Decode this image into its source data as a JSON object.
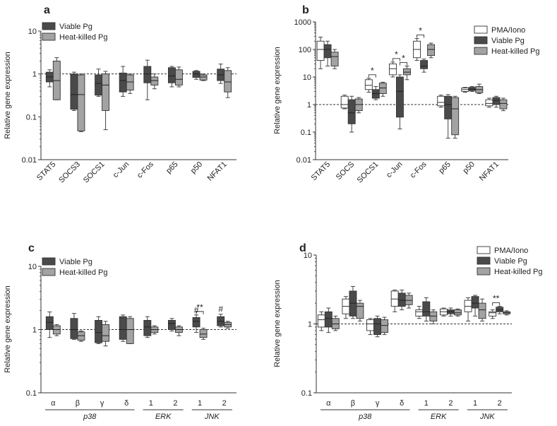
{
  "figure": {
    "y_axis_label": "Relative gene expression"
  },
  "chart_data": [
    {
      "panel_letter": "a",
      "type": "boxplot",
      "scale": "log",
      "ylim": [
        0.01,
        10
      ],
      "yticks": [
        "10",
        "1",
        "0.1",
        "0.01"
      ],
      "reference_line": 1,
      "ylabel": "Relative gene expression",
      "categories": [
        "STAT5",
        "SOCS3",
        "SOCS1",
        "c-Jun",
        "c-Fos",
        "p65",
        "p50",
        "NFAT1"
      ],
      "legend": [
        {
          "name": "Viable Pg",
          "color": "#4a4a4a"
        },
        {
          "name": "Heat-killed Pg",
          "color": "#a3a3a3"
        }
      ],
      "series": [
        {
          "name": "Viable Pg",
          "boxes": [
            {
              "min": 0.5,
              "q1": 0.65,
              "med": 0.85,
              "q3": 1.1,
              "max": 1.25
            },
            {
              "min": 0.14,
              "q1": 0.15,
              "med": 0.33,
              "q3": 1.0,
              "max": 1.1
            },
            {
              "min": 0.3,
              "q1": 0.32,
              "med": 0.6,
              "q3": 0.95,
              "max": 1.3
            },
            {
              "min": 0.3,
              "q1": 0.38,
              "med": 0.7,
              "q3": 1.05,
              "max": 1.5
            },
            {
              "min": 0.25,
              "q1": 0.62,
              "med": 1.0,
              "q3": 1.5,
              "max": 2.1
            },
            {
              "min": 0.5,
              "q1": 0.62,
              "med": 0.9,
              "q3": 1.4,
              "max": 1.5
            },
            {
              "min": 0.75,
              "q1": 0.83,
              "med": 1.0,
              "q3": 1.15,
              "max": 1.2
            },
            {
              "min": 0.6,
              "q1": 0.7,
              "med": 0.95,
              "q3": 1.3,
              "max": 1.7
            }
          ]
        },
        {
          "name": "Heat-killed Pg",
          "boxes": [
            {
              "min": 0.25,
              "q1": 0.25,
              "med": 0.7,
              "q3": 2.0,
              "max": 2.4
            },
            {
              "min": 0.045,
              "q1": 0.047,
              "med": 0.33,
              "q3": 0.95,
              "max": 1.0
            },
            {
              "min": 0.05,
              "q1": 0.14,
              "med": 0.55,
              "q3": 1.0,
              "max": 1.15
            },
            {
              "min": 0.35,
              "q1": 0.42,
              "med": 0.65,
              "q3": 0.95,
              "max": 1.0
            },
            {
              "min": 0.45,
              "q1": 0.55,
              "med": 0.7,
              "q3": 0.85,
              "max": 1.0
            },
            {
              "min": 0.5,
              "q1": 0.55,
              "med": 0.75,
              "q3": 1.25,
              "max": 1.45
            },
            {
              "min": 0.7,
              "q1": 0.72,
              "med": 0.85,
              "q3": 0.95,
              "max": 1.0
            },
            {
              "min": 0.28,
              "q1": 0.38,
              "med": 0.65,
              "q3": 1.2,
              "max": 1.4
            }
          ]
        }
      ],
      "annotations": []
    },
    {
      "panel_letter": "b",
      "type": "boxplot",
      "scale": "log",
      "ylim": [
        0.01,
        1000
      ],
      "yticks": [
        "1000",
        "100",
        "10",
        "1",
        "0.1",
        "0.01"
      ],
      "reference_line": 1,
      "ylabel": "Relative gene expression",
      "categories": [
        "STAT5",
        "SOCS",
        "SOCS1",
        "c-Jun",
        "c-Fos",
        "p65",
        "p50",
        "NFAT1"
      ],
      "legend": [
        {
          "name": "PMA/Iono",
          "color": "#ffffff"
        },
        {
          "name": "Viable Pg",
          "color": "#4a4a4a"
        },
        {
          "name": "Heat-killed Pg",
          "color": "#a3a3a3"
        }
      ],
      "series": [
        {
          "name": "PMA/Iono",
          "boxes": [
            {
              "min": 20,
              "q1": 40,
              "med": 100,
              "q3": 200,
              "max": 280
            },
            {
              "min": 0.7,
              "q1": 0.75,
              "med": 1.0,
              "q3": 2.0,
              "max": 2.2
            },
            {
              "min": 2.8,
              "q1": 3.5,
              "med": 5.0,
              "q3": 8.0,
              "max": 9.0
            },
            {
              "min": 10,
              "q1": 12,
              "med": 20,
              "q3": 30,
              "max": 35
            },
            {
              "min": 40,
              "q1": 50,
              "med": 100,
              "q3": 200,
              "max": 250
            },
            {
              "min": 0.8,
              "q1": 0.9,
              "med": 1.2,
              "q3": 2.0,
              "max": 2.2
            },
            {
              "min": 2.8,
              "q1": 3.0,
              "med": 3.5,
              "q3": 4.0,
              "max": 4.2
            },
            {
              "min": 0.8,
              "q1": 0.9,
              "med": 1.1,
              "q3": 1.5,
              "max": 1.7
            }
          ]
        },
        {
          "name": "Viable Pg",
          "boxes": [
            {
              "min": 25,
              "q1": 50,
              "med": 100,
              "q3": 150,
              "max": 200
            },
            {
              "min": 0.1,
              "q1": 0.2,
              "med": 0.5,
              "q3": 1.5,
              "max": 2.0
            },
            {
              "min": 1.5,
              "q1": 1.7,
              "med": 2.5,
              "q3": 3.5,
              "max": 4.5
            },
            {
              "min": 0.13,
              "q1": 0.35,
              "med": 3.0,
              "q3": 10,
              "max": 12
            },
            {
              "min": 15,
              "q1": 20,
              "med": 25,
              "q3": 40,
              "max": 45
            },
            {
              "min": 0.06,
              "q1": 0.3,
              "med": 1.0,
              "q3": 2.0,
              "max": 2.3
            },
            {
              "min": 3.0,
              "q1": 3.2,
              "med": 3.6,
              "q3": 4.2,
              "max": 4.5
            },
            {
              "min": 0.8,
              "q1": 1.0,
              "med": 1.4,
              "q3": 1.8,
              "max": 2.0
            }
          ]
        },
        {
          "name": "Heat-killed Pg",
          "boxes": [
            {
              "min": 20,
              "q1": 25,
              "med": 55,
              "q3": 80,
              "max": 100
            },
            {
              "min": 0.5,
              "q1": 0.6,
              "med": 1.0,
              "q3": 1.6,
              "max": 1.8
            },
            {
              "min": 2.0,
              "q1": 2.5,
              "med": 4.0,
              "q3": 6.0,
              "max": 6.5
            },
            {
              "min": 8,
              "q1": 12,
              "med": 15,
              "q3": 20,
              "max": 25
            },
            {
              "min": 50,
              "q1": 60,
              "med": 100,
              "q3": 150,
              "max": 170
            },
            {
              "min": 0.06,
              "q1": 0.08,
              "med": 0.7,
              "q3": 1.8,
              "max": 2.0
            },
            {
              "min": 2.5,
              "q1": 2.7,
              "med": 3.5,
              "q3": 4.5,
              "max": 5.5
            },
            {
              "min": 0.6,
              "q1": 0.7,
              "med": 1.1,
              "q3": 1.5,
              "max": 1.7
            }
          ]
        }
      ],
      "annotations": [
        {
          "text": "*",
          "category": 2,
          "from_series": 0,
          "to_series": 1
        },
        {
          "text": "*",
          "category": 3,
          "from_series": 0,
          "to_series": 1
        },
        {
          "text": "*",
          "category": 3,
          "from_series": 1,
          "to_series": 2
        },
        {
          "text": "*",
          "category": 4,
          "from_series": 0,
          "to_series": 1
        }
      ]
    },
    {
      "panel_letter": "c",
      "type": "boxplot",
      "scale": "log",
      "ylim": [
        0.1,
        10
      ],
      "yticks": [
        "10",
        "1",
        "0.1"
      ],
      "reference_line": 1,
      "ylabel": "Relative gene expression",
      "categories": [
        "α",
        "β",
        "γ",
        "δ",
        "1",
        "2",
        "1",
        "2"
      ],
      "groups": [
        {
          "label": "p38",
          "from": 0,
          "to": 3
        },
        {
          "label": "ERK",
          "from": 4,
          "to": 5
        },
        {
          "label": "JNK",
          "from": 6,
          "to": 7
        }
      ],
      "legend": [
        {
          "name": "Viable Pg",
          "color": "#4a4a4a"
        },
        {
          "name": "Heat-killed Pg",
          "color": "#a3a3a3"
        }
      ],
      "series": [
        {
          "name": "Viable Pg",
          "boxes": [
            {
              "min": 0.75,
              "q1": 1.0,
              "med": 1.3,
              "q3": 1.6,
              "max": 1.9
            },
            {
              "min": 0.7,
              "q1": 0.72,
              "med": 1.0,
              "q3": 1.5,
              "max": 1.8
            },
            {
              "min": 0.6,
              "q1": 0.62,
              "med": 0.9,
              "q3": 1.4,
              "max": 1.6
            },
            {
              "min": 0.65,
              "q1": 0.7,
              "med": 1.0,
              "q3": 1.6,
              "max": 1.7
            },
            {
              "min": 0.75,
              "q1": 0.8,
              "med": 1.1,
              "q3": 1.4,
              "max": 1.6
            },
            {
              "min": 0.95,
              "q1": 1.0,
              "med": 1.25,
              "q3": 1.4,
              "max": 1.5
            },
            {
              "min": 0.9,
              "q1": 1.1,
              "med": 1.35,
              "q3": 1.55,
              "max": 1.7
            },
            {
              "min": 1.1,
              "q1": 1.15,
              "med": 1.35,
              "q3": 1.6,
              "max": 1.75
            }
          ]
        },
        {
          "name": "Heat-killed Pg",
          "boxes": [
            {
              "min": 0.8,
              "q1": 0.85,
              "med": 1.0,
              "q3": 1.15,
              "max": 1.2
            },
            {
              "min": 0.65,
              "q1": 0.68,
              "med": 0.8,
              "q3": 0.92,
              "max": 0.95
            },
            {
              "min": 0.55,
              "q1": 0.65,
              "med": 0.8,
              "q3": 1.2,
              "max": 1.35
            },
            {
              "min": 0.6,
              "q1": 0.6,
              "med": 1.0,
              "q3": 1.5,
              "max": 1.6
            },
            {
              "min": 0.85,
              "q1": 0.9,
              "med": 1.0,
              "q3": 1.1,
              "max": 1.15
            },
            {
              "min": 0.8,
              "q1": 0.9,
              "med": 1.0,
              "q3": 1.1,
              "max": 1.15
            },
            {
              "min": 0.7,
              "q1": 0.75,
              "med": 0.85,
              "q3": 1.0,
              "max": 1.05
            },
            {
              "min": 1.05,
              "q1": 1.1,
              "med": 1.2,
              "q3": 1.3,
              "max": 1.35
            }
          ]
        }
      ],
      "annotations": [
        {
          "text": "**",
          "category": 6,
          "from_series": 0,
          "to_series": 1
        },
        {
          "text": "#",
          "category": 6,
          "series": 0
        },
        {
          "text": "#",
          "category": 7,
          "series": 0
        }
      ]
    },
    {
      "panel_letter": "d",
      "type": "boxplot",
      "scale": "log",
      "ylim": [
        0.1,
        10
      ],
      "yticks": [
        "10",
        "1",
        "0.1"
      ],
      "reference_line": 1,
      "ylabel": "Relative gene expression",
      "categories": [
        "α",
        "β",
        "γ",
        "δ",
        "1",
        "2",
        "1",
        "2"
      ],
      "groups": [
        {
          "label": "p38",
          "from": 0,
          "to": 3
        },
        {
          "label": "ERK",
          "from": 4,
          "to": 5
        },
        {
          "label": "JNK",
          "from": 6,
          "to": 7
        }
      ],
      "legend": [
        {
          "name": "PMA/Iono",
          "color": "#ffffff"
        },
        {
          "name": "Viable Pg",
          "color": "#4a4a4a"
        },
        {
          "name": "Heat-killed Pg",
          "color": "#a3a3a3"
        }
      ],
      "series": [
        {
          "name": "PMA/Iono",
          "boxes": [
            {
              "min": 0.8,
              "q1": 0.9,
              "med": 1.15,
              "q3": 1.35,
              "max": 1.5
            },
            {
              "min": 1.2,
              "q1": 1.4,
              "med": 1.8,
              "q3": 2.3,
              "max": 2.5
            },
            {
              "min": 0.7,
              "q1": 0.8,
              "med": 1.0,
              "q3": 1.15,
              "max": 1.2
            },
            {
              "min": 1.5,
              "q1": 1.8,
              "med": 2.3,
              "q3": 3.0,
              "max": 3.1
            },
            {
              "min": 1.2,
              "q1": 1.3,
              "med": 1.5,
              "q3": 1.6,
              "max": 1.8
            },
            {
              "min": 1.3,
              "q1": 1.35,
              "med": 1.5,
              "q3": 1.65,
              "max": 1.7
            },
            {
              "min": 1.1,
              "q1": 1.5,
              "med": 1.8,
              "q3": 2.2,
              "max": 2.4
            },
            {
              "min": 1.2,
              "q1": 1.3,
              "med": 1.45,
              "q3": 1.5,
              "max": 1.6
            }
          ]
        },
        {
          "name": "Viable Pg",
          "boxes": [
            {
              "min": 0.75,
              "q1": 0.9,
              "med": 1.2,
              "q3": 1.5,
              "max": 1.7
            },
            {
              "min": 1.2,
              "q1": 1.3,
              "med": 2.0,
              "q3": 3.0,
              "max": 3.5
            },
            {
              "min": 0.65,
              "q1": 0.7,
              "med": 1.0,
              "q3": 1.2,
              "max": 1.3
            },
            {
              "min": 1.6,
              "q1": 1.8,
              "med": 2.2,
              "q3": 2.8,
              "max": 3.1
            },
            {
              "min": 1.1,
              "q1": 1.3,
              "med": 1.5,
              "q3": 2.1,
              "max": 2.4
            },
            {
              "min": 1.3,
              "q1": 1.4,
              "med": 1.5,
              "q3": 1.6,
              "max": 1.7
            },
            {
              "min": 1.3,
              "q1": 1.7,
              "med": 2.0,
              "q3": 2.5,
              "max": 2.6
            },
            {
              "min": 1.4,
              "q1": 1.5,
              "med": 1.6,
              "q3": 1.75,
              "max": 1.8
            }
          ]
        },
        {
          "name": "Heat-killed Pg",
          "boxes": [
            {
              "min": 0.8,
              "q1": 0.85,
              "med": 1.0,
              "q3": 1.2,
              "max": 1.3
            },
            {
              "min": 1.1,
              "q1": 1.2,
              "med": 1.8,
              "q3": 2.0,
              "max": 2.2
            },
            {
              "min": 0.7,
              "q1": 0.75,
              "med": 0.95,
              "q3": 1.15,
              "max": 1.25
            },
            {
              "min": 1.7,
              "q1": 1.9,
              "med": 2.2,
              "q3": 2.6,
              "max": 2.8
            },
            {
              "min": 1.0,
              "q1": 1.1,
              "med": 1.3,
              "q3": 1.5,
              "max": 1.6
            },
            {
              "min": 1.3,
              "q1": 1.35,
              "med": 1.45,
              "q3": 1.6,
              "max": 1.65
            },
            {
              "min": 1.1,
              "q1": 1.2,
              "med": 1.6,
              "q3": 2.0,
              "max": 2.3
            },
            {
              "min": 1.35,
              "q1": 1.4,
              "med": 1.45,
              "q3": 1.5,
              "max": 1.55
            }
          ]
        }
      ],
      "annotations": [
        {
          "text": "**",
          "category": 7,
          "from_series": 0,
          "to_series": 1
        }
      ]
    }
  ]
}
